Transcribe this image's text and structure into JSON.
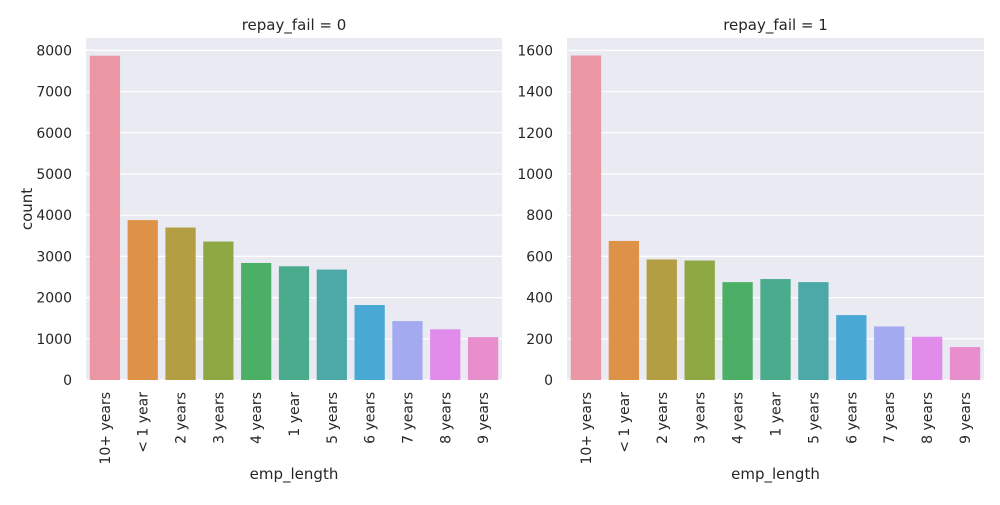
{
  "chart_data": {
    "type": "bar",
    "xlabel": "emp_length",
    "ylabel": "count",
    "grid": true,
    "colors": {
      "background": "#eaeaf2",
      "grid": "#ffffff",
      "bars": [
        "#ea96a3",
        "#de9247",
        "#b49e44",
        "#8ea844",
        "#4baf65",
        "#4bab8d",
        "#4ca9a7",
        "#4aa8d4",
        "#a4aaf0",
        "#e18bea",
        "#e98ecd"
      ]
    },
    "categories": [
      "10+ years",
      "< 1 year",
      "2 years",
      "3 years",
      "4 years",
      "1 year",
      "5 years",
      "6 years",
      "7 years",
      "8 years",
      "9 years"
    ],
    "panels": [
      {
        "title": "repay_fail = 0",
        "ylim": [
          0,
          8300
        ],
        "yticks": [
          "0",
          "1000",
          "2000",
          "3000",
          "4000",
          "5000",
          "6000",
          "7000",
          "8000"
        ],
        "values": [
          7870,
          3880,
          3700,
          3360,
          2840,
          2760,
          2680,
          1820,
          1430,
          1230,
          1040
        ]
      },
      {
        "title": "repay_fail = 1",
        "ylim": [
          0,
          1660
        ],
        "yticks": [
          "0",
          "200",
          "400",
          "600",
          "800",
          "1000",
          "1200",
          "1400",
          "1600"
        ],
        "values": [
          1575,
          675,
          585,
          580,
          475,
          490,
          475,
          315,
          260,
          210,
          160
        ]
      }
    ]
  }
}
